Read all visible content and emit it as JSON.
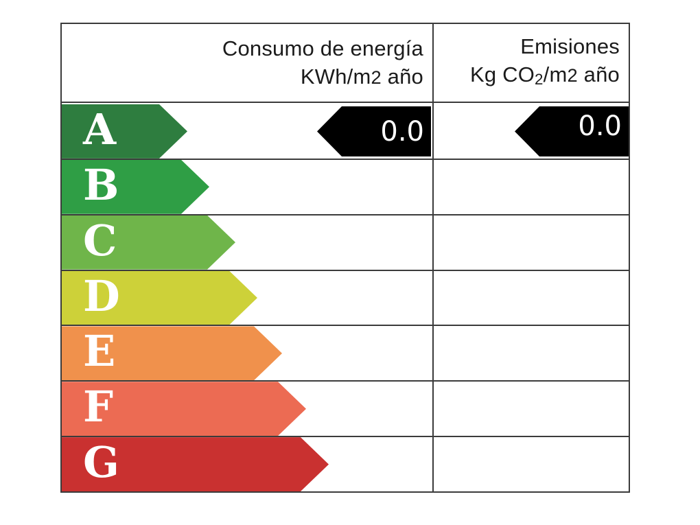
{
  "header": {
    "consumo": {
      "line1": "Consumo de energía",
      "line2_prefix": "KWh/m",
      "line2_exp": "2",
      "line2_suffix": " año"
    },
    "emisiones": {
      "line1": "Emisiones",
      "line2_prefix": "Kg CO",
      "line2_sub": "2",
      "line2_mid": "/m",
      "line2_exp": "2",
      "line2_suffix": " año"
    }
  },
  "scale": {
    "ratings": [
      {
        "letter": "A",
        "color": "#2E7D3F"
      },
      {
        "letter": "B",
        "color": "#2F9E45"
      },
      {
        "letter": "C",
        "color": "#6FB54A"
      },
      {
        "letter": "D",
        "color": "#CDD139"
      },
      {
        "letter": "E",
        "color": "#F0914C"
      },
      {
        "letter": "F",
        "color": "#EC6B53"
      },
      {
        "letter": "G",
        "color": "#C93130"
      }
    ]
  },
  "indicators": {
    "consumo": {
      "value": "0.0",
      "color": "#000000",
      "text_color": "#FFFFFF",
      "row": "A"
    },
    "emisiones": {
      "value": "0.0",
      "color": "#000000",
      "text_color": "#FFFFFF",
      "row": "A"
    }
  },
  "style": {
    "line_color": "#3B3B3B",
    "header_text_color": "#1B1B1B",
    "background": "#FFFFFF"
  },
  "chart_data": {
    "type": "bar",
    "categories": [
      "A",
      "B",
      "C",
      "D",
      "E",
      "F",
      "G"
    ],
    "band_colors": [
      "#2E7D3F",
      "#2F9E45",
      "#6FB54A",
      "#CDD139",
      "#F0914C",
      "#EC6B53",
      "#C93130"
    ],
    "columns": [
      {
        "header": "Consumo de energía KWh/m2 año",
        "value": 0.0,
        "unit": "KWh/m2 año",
        "indicated_rating": "A"
      },
      {
        "header": "Emisiones Kg CO2/m2 año",
        "value": 0.0,
        "unit": "Kg CO2/m2 año",
        "indicated_rating": "A"
      }
    ],
    "legend_position": "none",
    "grid": "table-lines"
  }
}
